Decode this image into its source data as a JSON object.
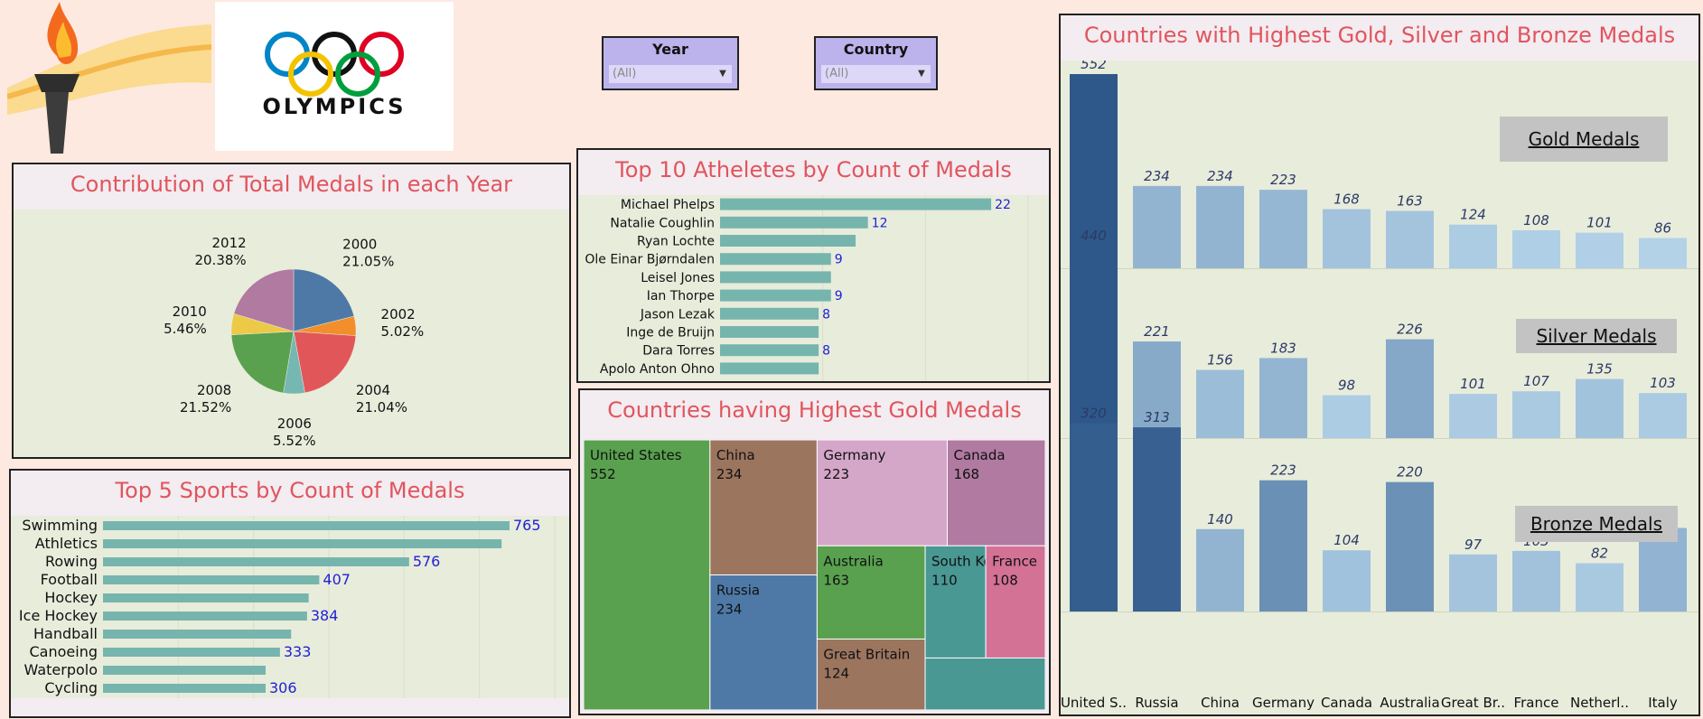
{
  "logo": {
    "text": "OLYMPICS"
  },
  "filters": {
    "year": {
      "label": "Year",
      "value": "(All)"
    },
    "country": {
      "label": "Country",
      "value": "(All)"
    }
  },
  "chart_data": [
    {
      "id": "pie",
      "type": "pie",
      "title": "Contribution of Total Medals in each Year",
      "slices": [
        {
          "label": "2000",
          "pct": "21.05%",
          "value": 21.05,
          "color": "#4e79a7"
        },
        {
          "label": "2002",
          "pct": "5.02%",
          "value": 5.02,
          "color": "#f28e2b"
        },
        {
          "label": "2004",
          "pct": "21.04%",
          "value": 21.04,
          "color": "#e15759"
        },
        {
          "label": "2006",
          "pct": "5.52%",
          "value": 5.52,
          "color": "#76b7b2"
        },
        {
          "label": "2008",
          "pct": "21.52%",
          "value": 21.52,
          "color": "#59a14f"
        },
        {
          "label": "2010",
          "pct": "5.46%",
          "value": 5.46,
          "color": "#edc948"
        },
        {
          "label": "2012",
          "pct": "20.38%",
          "value": 20.38,
          "color": "#b07aa1"
        }
      ]
    },
    {
      "id": "athletes",
      "type": "bar",
      "title": "Top 10 Atheletes by Count of Medals",
      "categories": [
        "Michael Phelps",
        "Natalie Coughlin",
        "Ryan Lochte",
        "Ole Einar Bjørndalen",
        "Leisel Jones",
        "Ian Thorpe",
        "Jason Lezak",
        "Inge de Bruijn",
        "Dara Torres",
        "Apolo Anton Ohno"
      ],
      "values": [
        22,
        12,
        11,
        9,
        9,
        9,
        8,
        8,
        8,
        8
      ],
      "labels": [
        "22",
        "12",
        "",
        "9",
        "",
        "9",
        "8",
        "",
        "8",
        ""
      ],
      "xlim": [
        0,
        25
      ],
      "color": "#76b5ad"
    },
    {
      "id": "treemap",
      "type": "treemap",
      "title": "Countries having Highest Gold Medals",
      "items": [
        {
          "name": "United States",
          "label": "552",
          "value": 552,
          "color": "#59a14f"
        },
        {
          "name": "China",
          "label": "234",
          "value": 234,
          "color": "#9c755f"
        },
        {
          "name": "Russia",
          "label": "234",
          "value": 234,
          "color": "#4e79a7"
        },
        {
          "name": "Germany",
          "label": "223",
          "value": 223,
          "color": "#d4a6c8"
        },
        {
          "name": "Canada",
          "label": "168",
          "value": 168,
          "color": "#b07aa1"
        },
        {
          "name": "Australia",
          "label": "163",
          "value": 163,
          "color": "#59a14f"
        },
        {
          "name": "Great Britain",
          "label": "124",
          "value": 124,
          "color": "#9c755f"
        },
        {
          "name": "South Korea",
          "label": "110",
          "value": 110,
          "color": "#499894"
        },
        {
          "name": "France",
          "label": "108",
          "value": 108,
          "color": "#d37295"
        },
        {
          "name": "",
          "label": "",
          "value": 101,
          "color": "#499894"
        }
      ]
    },
    {
      "id": "sports",
      "type": "bar",
      "title": "Top 5 Sports by Count of Medals",
      "categories": [
        "Swimming",
        "Athletics",
        "Rowing",
        "Football",
        "Hockey",
        "Ice Hockey",
        "Handball",
        "Canoeing",
        "Waterpolo",
        "Cycling"
      ],
      "values": [
        765,
        750,
        576,
        407,
        387,
        384,
        354,
        333,
        306,
        306
      ],
      "labels": [
        "765",
        "",
        "576",
        "407",
        "",
        "384",
        "",
        "333",
        "",
        "306"
      ],
      "xlim": [
        0,
        850
      ],
      "color": "#76b5ad"
    },
    {
      "id": "medals",
      "type": "bar",
      "title": "Countries with Highest Gold, Silver and Bronze Medals",
      "categories": [
        "United S..",
        "Russia",
        "China",
        "Germany",
        "Canada",
        "Australia",
        "Great Br..",
        "France",
        "Netherl..",
        "Italy"
      ],
      "series": [
        {
          "name": "Gold Medals",
          "values": [
            552,
            234,
            234,
            223,
            168,
            163,
            124,
            108,
            101,
            86
          ]
        },
        {
          "name": "Silver Medals",
          "values": [
            440,
            221,
            156,
            183,
            98,
            226,
            101,
            107,
            135,
            103
          ]
        },
        {
          "name": "Bronze Medals",
          "values": [
            320,
            313,
            140,
            223,
            104,
            220,
            97,
            103,
            82,
            142
          ]
        }
      ]
    }
  ]
}
